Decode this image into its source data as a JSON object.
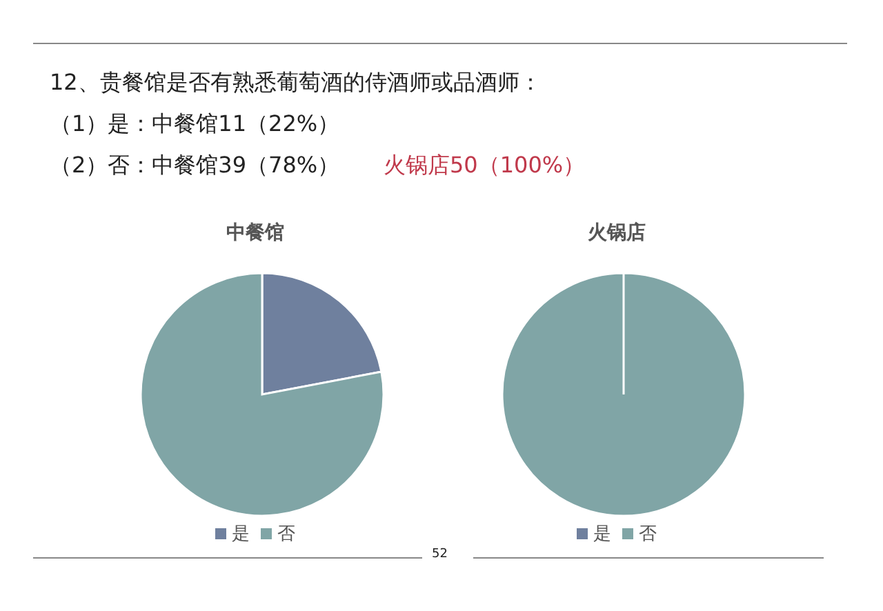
{
  "chart_data": [
    {
      "type": "pie",
      "title": "中餐馆",
      "categories": [
        "是",
        "否"
      ],
      "values": [
        22,
        78
      ],
      "colors": [
        "#6f809e",
        "#80a5a6"
      ],
      "legend": "bottom",
      "annotations": [
        "12、贵餐馆是否有熟悉葡萄酒的侍酒师或品酒师：",
        "（1）是：中餐馆11（22%）",
        "（2）否：中餐馆39（78%）",
        "火锅店50（100%）",
        "52"
      ]
    },
    {
      "type": "pie",
      "title": "火锅店",
      "categories": [
        "是",
        "否"
      ],
      "values": [
        0,
        100
      ],
      "colors": [
        "#6f809e",
        "#80a5a6"
      ],
      "legend": "bottom"
    }
  ]
}
